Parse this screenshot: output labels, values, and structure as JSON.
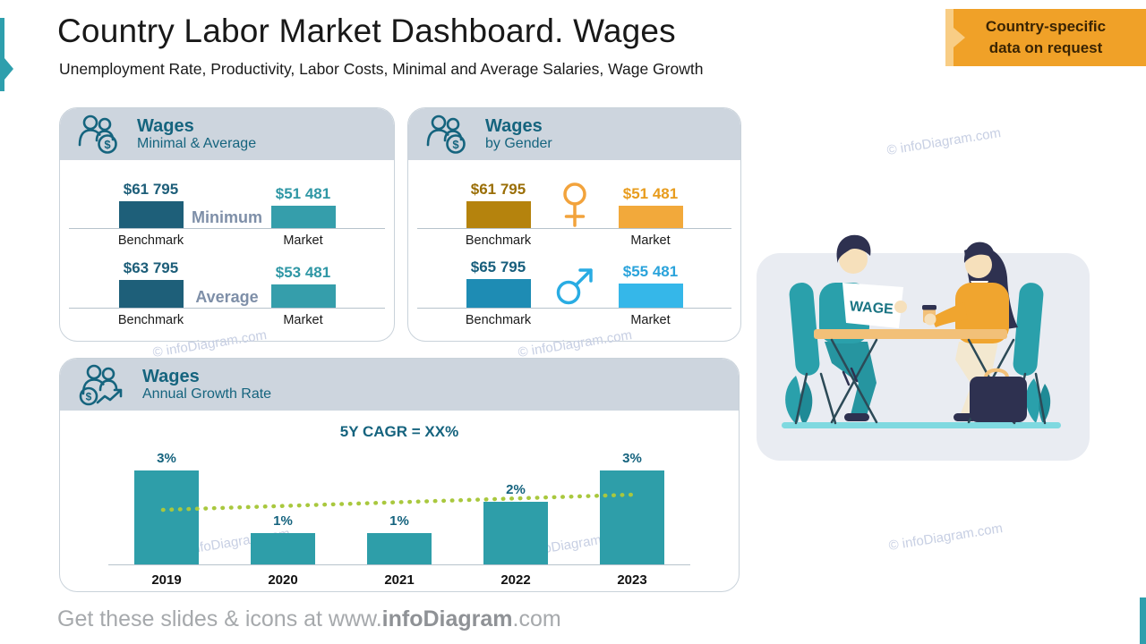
{
  "slide": {
    "title": "Country Labor Market Dashboard. Wages",
    "subtitle": "Unemployment Rate, Productivity, Labor Costs, Minimal and Average Salaries, Wage Growth"
  },
  "ribbon": {
    "line1": "Country-specific",
    "line2": "data on request"
  },
  "watermark_text": "© infoDiagram.com",
  "cards": {
    "minimal_average": {
      "title": "Wages",
      "subtitle": "Minimal & Average"
    },
    "by_gender": {
      "title": "Wages",
      "subtitle": "by Gender"
    },
    "growth": {
      "title": "Wages",
      "subtitle": "Annual Growth Rate"
    }
  },
  "chart_data": [
    {
      "type": "bar",
      "title": "Wages Minimal",
      "group_label": "Minimum",
      "unit": "USD",
      "categories": [
        "Benchmark",
        "Market"
      ],
      "values": [
        61795,
        51481
      ],
      "value_labels": [
        "$61 795",
        "$51 481"
      ]
    },
    {
      "type": "bar",
      "title": "Wages Average",
      "group_label": "Average",
      "unit": "USD",
      "categories": [
        "Benchmark",
        "Market"
      ],
      "values": [
        63795,
        53481
      ],
      "value_labels": [
        "$63 795",
        "$53 481"
      ]
    },
    {
      "type": "bar",
      "title": "Wages by Gender - Female",
      "gender": "female",
      "unit": "USD",
      "categories": [
        "Benchmark",
        "Market"
      ],
      "values": [
        61795,
        51481
      ],
      "value_labels": [
        "$61 795",
        "$51 481"
      ]
    },
    {
      "type": "bar",
      "title": "Wages by Gender - Male",
      "gender": "male",
      "unit": "USD",
      "categories": [
        "Benchmark",
        "Market"
      ],
      "values": [
        65795,
        55481
      ],
      "value_labels": [
        "$65 795",
        "$55 481"
      ]
    },
    {
      "type": "bar",
      "title": "5Y CAGR = XX%",
      "unit": "%",
      "ylim": [
        0,
        3.5
      ],
      "trendline": true,
      "categories": [
        "2019",
        "2020",
        "2021",
        "2022",
        "2023"
      ],
      "values": [
        3,
        1,
        1,
        2,
        3
      ],
      "value_labels": [
        "3%",
        "1%",
        "1%",
        "2%",
        "3%"
      ]
    }
  ],
  "illustration": {
    "paper_text": "WAGE"
  },
  "footer": {
    "prefix": "Get these slides & icons at www.",
    "brand": "infoDiagram",
    "suffix": ".com"
  },
  "colors": {
    "teal_dark": "#15647E",
    "teal_bar_dark": "#1E5F79",
    "teal_bar": "#359EAB",
    "growth_bar": "#2E9EA9",
    "gold_dark": "#B5830D",
    "orange": "#F2A93B",
    "blue": "#1E8CB4",
    "blue_light": "#35B7E9",
    "trend_green": "#A9C83E",
    "header_band": "#CDD5DE",
    "ribbon_orange": "#F0A128",
    "accent_teal": "#2E9FAD"
  }
}
